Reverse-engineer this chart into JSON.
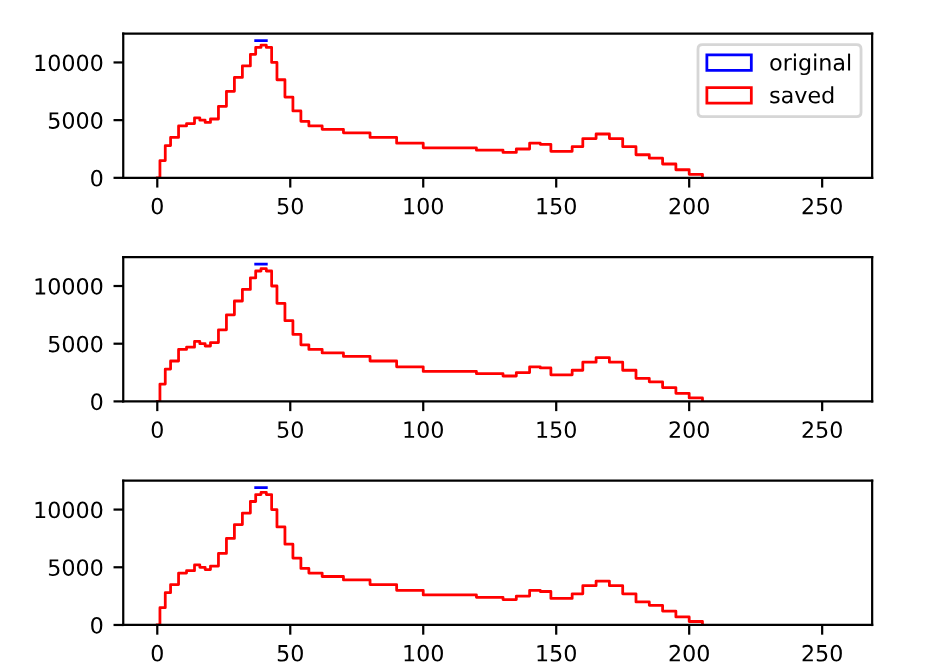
{
  "chart_data": [
    {
      "type": "step",
      "xlim": [
        -12.8,
        268.8
      ],
      "ylim": [
        0,
        12500
      ],
      "xticks": [
        0,
        50,
        100,
        150,
        200,
        250
      ],
      "yticks": [
        0,
        5000,
        10000
      ],
      "grid": false,
      "legend": "top right",
      "series": [
        {
          "name": "original",
          "color": "#0000ff",
          "x": [
            37,
            41
          ],
          "values": [
            11900,
            11900
          ]
        },
        {
          "name": "saved",
          "color": "#ff0000",
          "x": [
            0,
            1,
            3,
            5,
            8,
            11,
            14,
            16,
            18,
            20,
            23,
            26,
            29,
            32,
            35,
            37,
            39,
            41,
            43,
            45,
            48,
            51,
            54,
            57,
            62,
            70,
            80,
            90,
            100,
            110,
            120,
            130,
            135,
            140,
            144,
            148,
            152,
            156,
            160,
            165,
            170,
            175,
            180,
            185,
            190,
            195,
            200,
            205
          ],
          "values": [
            0,
            1500,
            2800,
            3500,
            4500,
            4700,
            5200,
            5000,
            4800,
            5100,
            6200,
            7500,
            8700,
            9700,
            10700,
            11300,
            11500,
            11300,
            10000,
            8500,
            7000,
            5800,
            4900,
            4500,
            4200,
            3900,
            3500,
            3000,
            2600,
            2600,
            2400,
            2200,
            2500,
            3000,
            2900,
            2300,
            2300,
            2700,
            3400,
            3800,
            3400,
            2700,
            2000,
            1700,
            1200,
            700,
            300,
            0
          ]
        }
      ]
    },
    {
      "type": "step",
      "xlim": [
        -12.8,
        268.8
      ],
      "ylim": [
        0,
        12500
      ],
      "xticks": [
        0,
        50,
        100,
        150,
        200,
        250
      ],
      "yticks": [
        0,
        5000,
        10000
      ],
      "grid": false,
      "series": [
        {
          "color": "#0000ff",
          "x": [
            37,
            41
          ],
          "values": [
            11900,
            11900
          ]
        },
        {
          "color": "#ff0000",
          "x": [
            0,
            1,
            3,
            5,
            8,
            11,
            14,
            16,
            18,
            20,
            23,
            26,
            29,
            32,
            35,
            37,
            39,
            41,
            43,
            45,
            48,
            51,
            54,
            57,
            62,
            70,
            80,
            90,
            100,
            110,
            120,
            130,
            135,
            140,
            144,
            148,
            152,
            156,
            160,
            165,
            170,
            175,
            180,
            185,
            190,
            195,
            200,
            205
          ],
          "values": [
            0,
            1500,
            2800,
            3500,
            4500,
            4700,
            5200,
            5000,
            4800,
            5100,
            6200,
            7500,
            8700,
            9700,
            10700,
            11300,
            11500,
            11300,
            10000,
            8500,
            7000,
            5800,
            4900,
            4500,
            4200,
            3900,
            3500,
            3000,
            2600,
            2600,
            2400,
            2200,
            2500,
            3000,
            2900,
            2300,
            2300,
            2700,
            3400,
            3800,
            3400,
            2700,
            2000,
            1700,
            1200,
            700,
            300,
            0
          ]
        }
      ]
    },
    {
      "type": "step",
      "xlim": [
        -12.8,
        268.8
      ],
      "ylim": [
        0,
        12500
      ],
      "xticks": [
        0,
        50,
        100,
        150,
        200,
        250
      ],
      "yticks": [
        0,
        5000,
        10000
      ],
      "grid": false,
      "series": [
        {
          "color": "#0000ff",
          "x": [
            37,
            41
          ],
          "values": [
            11900,
            11900
          ]
        },
        {
          "color": "#ff0000",
          "x": [
            0,
            1,
            3,
            5,
            8,
            11,
            14,
            16,
            18,
            20,
            23,
            26,
            29,
            32,
            35,
            37,
            39,
            41,
            43,
            45,
            48,
            51,
            54,
            57,
            62,
            70,
            80,
            90,
            100,
            110,
            120,
            130,
            135,
            140,
            144,
            148,
            152,
            156,
            160,
            165,
            170,
            175,
            180,
            185,
            190,
            195,
            200,
            205
          ],
          "values": [
            0,
            1500,
            2800,
            3500,
            4500,
            4700,
            5200,
            5000,
            4800,
            5100,
            6200,
            7500,
            8700,
            9700,
            10700,
            11300,
            11500,
            11300,
            10000,
            8500,
            7000,
            5800,
            4900,
            4500,
            4200,
            3900,
            3500,
            3000,
            2600,
            2600,
            2400,
            2200,
            2500,
            3000,
            2900,
            2300,
            2300,
            2700,
            3400,
            3800,
            3400,
            2700,
            2000,
            1700,
            1200,
            700,
            300,
            0
          ]
        }
      ]
    }
  ]
}
